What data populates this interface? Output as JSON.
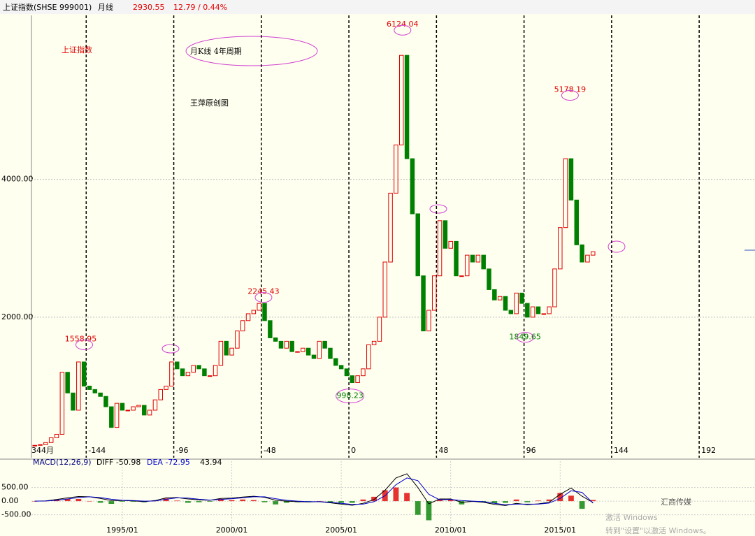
{
  "header": {
    "symbol": "上证指数(SHSE 999001)",
    "period": "月线",
    "last": "2930.55",
    "change": "12.79 / 0.44%"
  },
  "chart_data": [
    {
      "type": "bar",
      "title": "上证指数",
      "subtitle": "月K线 4年周期",
      "note": "王萍原创图",
      "x": [
        1991,
        1991.25,
        1991.5,
        1991.75,
        1992,
        1992.25,
        1992.5,
        1992.75,
        1993,
        1993.25,
        1993.5,
        1993.75,
        1994,
        1994.25,
        1994.5,
        1994.75,
        1995,
        1995.25,
        1995.5,
        1995.75,
        1996,
        1996.25,
        1996.5,
        1996.75,
        1997,
        1997.25,
        1997.5,
        1997.75,
        1998,
        1998.25,
        1998.5,
        1998.75,
        1999,
        1999.25,
        1999.5,
        1999.75,
        2000,
        2000.25,
        2000.5,
        2000.75,
        2001,
        2001.25,
        2001.5,
        2001.75,
        2002,
        2002.25,
        2002.5,
        2002.75,
        2003,
        2003.25,
        2003.5,
        2003.75,
        2004,
        2004.25,
        2004.5,
        2004.75,
        2005,
        2005.25,
        2005.5,
        2005.75,
        2006,
        2006.25,
        2006.5,
        2006.75,
        2007,
        2007.25,
        2007.5,
        2007.75,
        2008,
        2008.25,
        2008.5,
        2008.75,
        2009,
        2009.25,
        2009.5,
        2009.75,
        2010,
        2010.25,
        2010.5,
        2010.75,
        2011,
        2011.25,
        2011.5,
        2011.75,
        2012,
        2012.25,
        2012.5,
        2012.75,
        2013,
        2013.25,
        2013.5,
        2013.75,
        2014,
        2014.25,
        2014.5,
        2014.75,
        2015,
        2015.25,
        2015.5,
        2015.75,
        2016,
        2016.25,
        2016.5
      ],
      "series": [
        {
          "name": "上证指数",
          "up_color": "#e00000",
          "down_color": "#008000",
          "values": [
            140,
            150,
            180,
            250,
            300,
            1200,
            900,
            650,
            1350,
            1000,
            950,
            900,
            850,
            700,
            400,
            750,
            650,
            650,
            700,
            720,
            580,
            650,
            800,
            950,
            1000,
            1350,
            1250,
            1150,
            1200,
            1300,
            1250,
            1150,
            1150,
            1300,
            1650,
            1450,
            1550,
            1800,
            1950,
            2050,
            2100,
            2200,
            1950,
            1700,
            1650,
            1550,
            1650,
            1500,
            1500,
            1550,
            1450,
            1400,
            1650,
            1550,
            1400,
            1300,
            1250,
            1150,
            1050,
            1150,
            1250,
            1600,
            1650,
            2000,
            2800,
            3800,
            4500,
            5800,
            4300,
            3500,
            2600,
            1800,
            2100,
            2600,
            3400,
            3000,
            3100,
            2600,
            2600,
            2900,
            2800,
            2900,
            2700,
            2400,
            2250,
            2300,
            2100,
            2050,
            2350,
            2200,
            2000,
            2150,
            2050,
            2050,
            2150,
            2700,
            3300,
            4300,
            3700,
            3050,
            2800,
            2900,
            2950
          ]
        }
      ],
      "xlim": [
        1990.85,
        2023.9
      ],
      "ylim": [
        -40,
        6380
      ],
      "yticks": [
        {
          "value": 2000,
          "label": "2000.00"
        },
        {
          "value": 4000,
          "label": "4000.00"
        }
      ],
      "grid": true,
      "annotations": [
        {
          "text": "1558.95",
          "x": 1993.1,
          "y": 1558.95
        },
        {
          "text": "2245.43",
          "x": 2001.45,
          "y": 2245.43
        },
        {
          "text": "998.23",
          "x": 2005.4,
          "y": 998.23
        },
        {
          "text": "6124.04",
          "x": 2007.8,
          "y": 6124.04
        },
        {
          "text": "1849.65",
          "x": 2013.4,
          "y": 1849.65
        },
        {
          "text": "5178.19",
          "x": 2015.45,
          "y": 5178.19
        }
      ],
      "cycle_lines": [
        {
          "value": 1993.35,
          "label": "-144"
        },
        {
          "value": 1997.35,
          "label": "-96"
        },
        {
          "value": 2001.35,
          "label": "-48"
        },
        {
          "value": 2005.35,
          "label": "0"
        },
        {
          "value": 2009.35,
          "label": "48"
        },
        {
          "value": 2013.35,
          "label": "96"
        },
        {
          "value": 2017.35,
          "label": "144"
        },
        {
          "value": 2021.35,
          "label": "192"
        }
      ],
      "start_label": "344月"
    },
    {
      "type": "macd",
      "readout": {
        "name": "MACD(12,26,9)",
        "diff": "DIFF -50.98",
        "dea": "DEA -72.95",
        "macd": "43.94"
      },
      "x": [
        1991,
        1991.5,
        1992,
        1992.5,
        1993,
        1993.5,
        1994,
        1994.5,
        1995,
        1995.5,
        1996,
        1996.5,
        1997,
        1997.5,
        1998,
        1998.5,
        1999,
        1999.5,
        2000,
        2000.5,
        2001,
        2001.5,
        2002,
        2002.5,
        2003,
        2003.5,
        2004,
        2004.5,
        2005,
        2005.5,
        2006,
        2006.5,
        2007,
        2007.5,
        2008,
        2008.5,
        2009,
        2009.5,
        2010,
        2010.5,
        2011,
        2011.5,
        2012,
        2012.5,
        2013,
        2013.5,
        2014,
        2014.5,
        2015,
        2015.5,
        2016,
        2016.5
      ],
      "series": [
        {
          "name": "DIFF",
          "color": "#000000",
          "values": [
            0,
            10,
            60,
            120,
            170,
            160,
            100,
            20,
            20,
            10,
            -20,
            20,
            120,
            130,
            80,
            50,
            30,
            100,
            110,
            150,
            180,
            140,
            30,
            0,
            -20,
            -30,
            -20,
            -60,
            -110,
            -150,
            -80,
            60,
            400,
            850,
            1000,
            500,
            -100,
            80,
            80,
            -40,
            -10,
            -40,
            -120,
            -160,
            -80,
            -130,
            -100,
            -40,
            250,
            480,
            180,
            -50.98
          ]
        },
        {
          "name": "DEA",
          "color": "#0000cc",
          "values": [
            0,
            5,
            30,
            80,
            130,
            160,
            130,
            70,
            30,
            20,
            0,
            5,
            70,
            120,
            110,
            70,
            40,
            60,
            90,
            120,
            160,
            160,
            90,
            30,
            0,
            -20,
            -20,
            -40,
            -80,
            -120,
            -110,
            -20,
            200,
            600,
            850,
            750,
            250,
            50,
            60,
            20,
            0,
            -20,
            -80,
            -130,
            -110,
            -110,
            -110,
            -70,
            100,
            380,
            320,
            -72.95
          ]
        },
        {
          "name": "MACD",
          "up_color": "#e00000",
          "down_color": "#008000",
          "values": [
            0,
            10,
            60,
            80,
            80,
            0,
            -60,
            -100,
            -20,
            -20,
            -40,
            30,
            100,
            20,
            -60,
            -40,
            -20,
            80,
            40,
            60,
            40,
            -40,
            -120,
            -60,
            -40,
            -20,
            0,
            -40,
            -60,
            -60,
            60,
            160,
            400,
            500,
            300,
            -500,
            -700,
            60,
            40,
            -120,
            -20,
            -40,
            -80,
            -60,
            60,
            -40,
            20,
            60,
            300,
            200,
            -280,
            43.94
          ]
        }
      ],
      "xlim": [
        1990.85,
        2023.9
      ],
      "ylim": [
        -841,
        1205
      ],
      "yticks": [
        {
          "value": 500,
          "label": "500.00"
        },
        {
          "value": 0,
          "label": "0.00"
        },
        {
          "value": -500,
          "label": "-500.00"
        }
      ],
      "xticks": [
        {
          "value": 1995,
          "label": "1995/01"
        },
        {
          "value": 2000,
          "label": "2000/01"
        },
        {
          "value": 2005,
          "label": "2005/01"
        },
        {
          "value": 2010,
          "label": "2010/01"
        },
        {
          "value": 2015,
          "label": "2015/01"
        }
      ]
    }
  ],
  "watermark": {
    "brand": "汇商传媒",
    "activate": "激活 Windows",
    "activate_hint": "转到\"设置\"以激活 Windows。"
  }
}
